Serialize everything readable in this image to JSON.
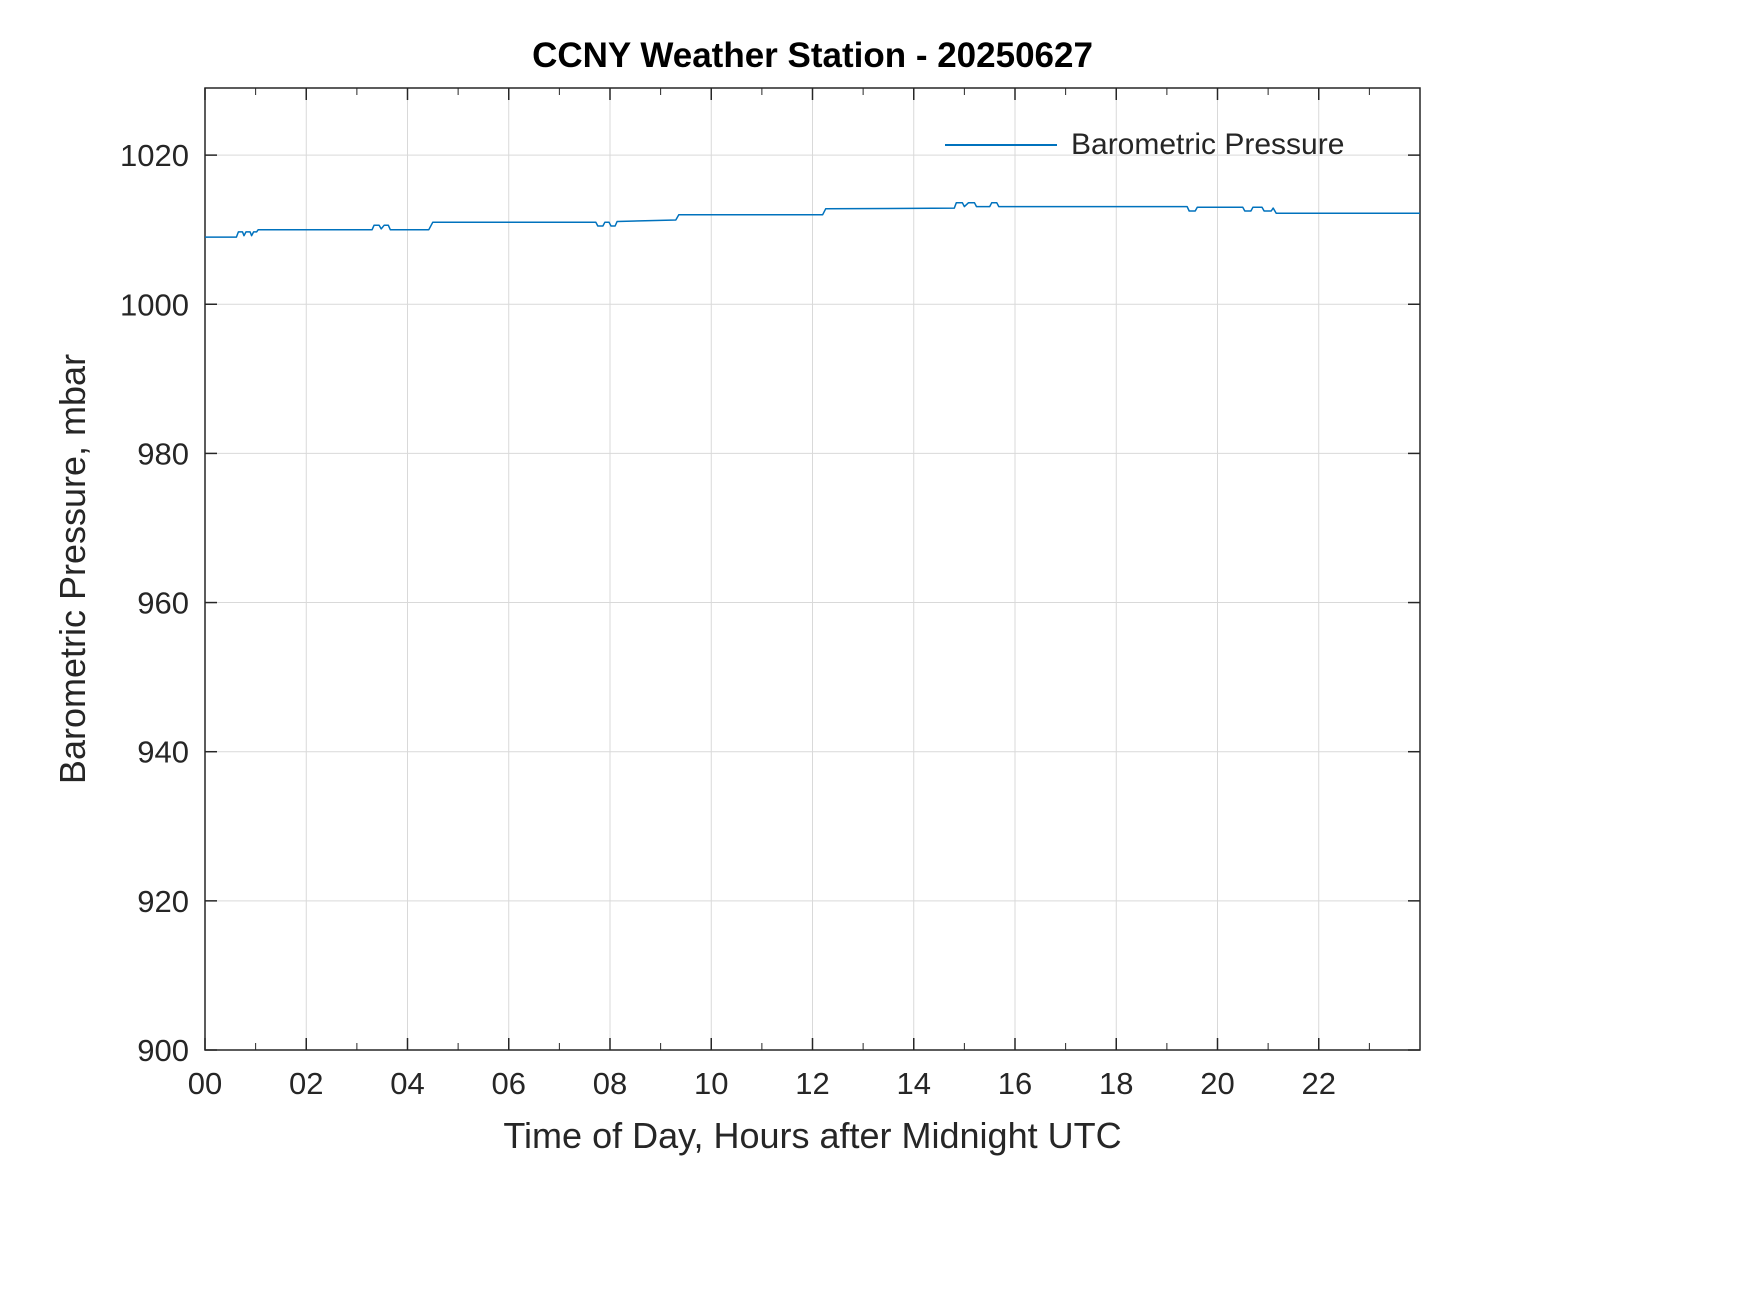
{
  "title": "CCNY Weather Station - 20250627",
  "colors": {
    "line": "#0072BD",
    "grid": "#d9d9d9",
    "axis": "#262626",
    "background": "#ffffff"
  },
  "legend": {
    "position": "top-right",
    "label": "Barometric Pressure"
  },
  "chart_data": {
    "type": "line",
    "title": "CCNY Weather Station - 20250627",
    "xlabel": "Time of Day, Hours after Midnight UTC",
    "ylabel": "Barometric Pressure, mbar",
    "xlim": [
      0,
      24
    ],
    "ylim": [
      900,
      1029
    ],
    "grid": true,
    "xticks": [
      0,
      2,
      4,
      6,
      8,
      10,
      12,
      14,
      16,
      18,
      20,
      22
    ],
    "xtick_labels": [
      "00",
      "02",
      "04",
      "06",
      "08",
      "10",
      "12",
      "14",
      "16",
      "18",
      "20",
      "22"
    ],
    "yticks": [
      900,
      920,
      940,
      960,
      980,
      1000,
      1020
    ],
    "ytick_labels": [
      "900",
      "920",
      "940",
      "960",
      "980",
      "1000",
      "1020"
    ],
    "legend_position": "top-right",
    "series": [
      {
        "name": "Barometric Pressure",
        "color": "#0072BD",
        "points": [
          [
            0,
            1009
          ],
          [
            0.62,
            1009
          ],
          [
            0.66,
            1009.7
          ],
          [
            0.74,
            1009.7
          ],
          [
            0.77,
            1009.2
          ],
          [
            0.81,
            1009.7
          ],
          [
            0.89,
            1009.7
          ],
          [
            0.92,
            1009.2
          ],
          [
            0.96,
            1009.7
          ],
          [
            1.02,
            1009.7
          ],
          [
            1.05,
            1010
          ],
          [
            3.3,
            1010
          ],
          [
            3.34,
            1010.6
          ],
          [
            3.44,
            1010.6
          ],
          [
            3.48,
            1010.1
          ],
          [
            3.54,
            1010.6
          ],
          [
            3.62,
            1010.6
          ],
          [
            3.66,
            1010
          ],
          [
            4.42,
            1010
          ],
          [
            4.5,
            1011
          ],
          [
            7.72,
            1011
          ],
          [
            7.76,
            1010.5
          ],
          [
            7.86,
            1010.5
          ],
          [
            7.9,
            1011
          ],
          [
            7.98,
            1011
          ],
          [
            8.02,
            1010.5
          ],
          [
            8.1,
            1010.5
          ],
          [
            8.14,
            1011.1
          ],
          [
            9.3,
            1011.3
          ],
          [
            9.36,
            1012
          ],
          [
            12.2,
            1012
          ],
          [
            12.26,
            1012.8
          ],
          [
            14.8,
            1012.9
          ],
          [
            14.84,
            1013.6
          ],
          [
            14.96,
            1013.6
          ],
          [
            15.0,
            1013.1
          ],
          [
            15.08,
            1013.6
          ],
          [
            15.2,
            1013.6
          ],
          [
            15.24,
            1013.1
          ],
          [
            15.5,
            1013.1
          ],
          [
            15.54,
            1013.6
          ],
          [
            15.64,
            1013.6
          ],
          [
            15.68,
            1013.1
          ],
          [
            19.4,
            1013.1
          ],
          [
            19.44,
            1012.5
          ],
          [
            19.56,
            1012.5
          ],
          [
            19.6,
            1013
          ],
          [
            20.5,
            1013
          ],
          [
            20.54,
            1012.5
          ],
          [
            20.66,
            1012.5
          ],
          [
            20.7,
            1013
          ],
          [
            20.88,
            1013
          ],
          [
            20.92,
            1012.5
          ],
          [
            21.06,
            1012.5
          ],
          [
            21.1,
            1012.9
          ],
          [
            21.16,
            1012.2
          ],
          [
            24,
            1012.2
          ]
        ]
      }
    ]
  }
}
